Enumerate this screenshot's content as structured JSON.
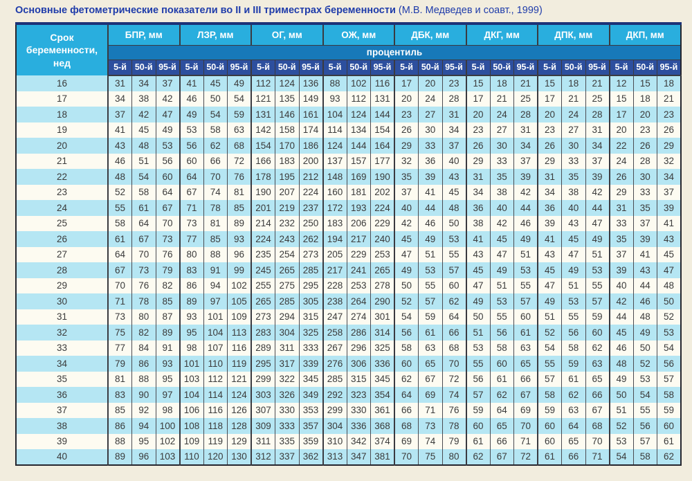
{
  "title": {
    "main": "Основные фетометрические показатели во II и III триместрах беременности",
    "source": "(М.В. Медведев и соавт., 1999)"
  },
  "colors": {
    "page_bg": "#f2edde",
    "title_blue": "#1f3caa",
    "header_cyan": "#29aede",
    "band_blue": "#1779b9",
    "pct_navy": "#2d4f9e",
    "stripe_cyan": "#b5e6f3",
    "stripe_white": "#fdfbf1"
  },
  "table": {
    "corner_header": "Срок беременности, нед",
    "groups": [
      "БПР, мм",
      "ЛЗР, мм",
      "ОГ, мм",
      "ОЖ, мм",
      "ДБК, мм",
      "ДКГ, мм",
      "ДПК, мм",
      "ДКП, мм"
    ],
    "percentile_label": "процентиль",
    "percentiles": [
      "5-й",
      "50-й",
      "95-й"
    ],
    "rows": [
      {
        "week": 16,
        "values": [
          31,
          34,
          37,
          41,
          45,
          49,
          112,
          124,
          136,
          88,
          102,
          116,
          17,
          20,
          23,
          15,
          18,
          21,
          15,
          18,
          21,
          12,
          15,
          18
        ]
      },
      {
        "week": 17,
        "values": [
          34,
          38,
          42,
          46,
          50,
          54,
          121,
          135,
          149,
          93,
          112,
          131,
          20,
          24,
          28,
          17,
          21,
          25,
          17,
          21,
          25,
          15,
          18,
          21
        ]
      },
      {
        "week": 18,
        "values": [
          37,
          42,
          47,
          49,
          54,
          59,
          131,
          146,
          161,
          104,
          124,
          144,
          23,
          27,
          31,
          20,
          24,
          28,
          20,
          24,
          28,
          17,
          20,
          23
        ]
      },
      {
        "week": 19,
        "values": [
          41,
          45,
          49,
          53,
          58,
          63,
          142,
          158,
          174,
          114,
          134,
          154,
          26,
          30,
          34,
          23,
          27,
          31,
          23,
          27,
          31,
          20,
          23,
          26
        ]
      },
      {
        "week": 20,
        "values": [
          43,
          48,
          53,
          56,
          62,
          68,
          154,
          170,
          186,
          124,
          144,
          164,
          29,
          33,
          37,
          26,
          30,
          34,
          26,
          30,
          34,
          22,
          26,
          29
        ]
      },
      {
        "week": 21,
        "values": [
          46,
          51,
          56,
          60,
          66,
          72,
          166,
          183,
          200,
          137,
          157,
          177,
          32,
          36,
          40,
          29,
          33,
          37,
          29,
          33,
          37,
          24,
          28,
          32
        ]
      },
      {
        "week": 22,
        "values": [
          48,
          54,
          60,
          64,
          70,
          76,
          178,
          195,
          212,
          148,
          169,
          190,
          35,
          39,
          43,
          31,
          35,
          39,
          31,
          35,
          39,
          26,
          30,
          34
        ]
      },
      {
        "week": 23,
        "values": [
          52,
          58,
          64,
          67,
          74,
          81,
          190,
          207,
          224,
          160,
          181,
          202,
          37,
          41,
          45,
          34,
          38,
          42,
          34,
          38,
          42,
          29,
          33,
          37
        ]
      },
      {
        "week": 24,
        "values": [
          55,
          61,
          67,
          71,
          78,
          85,
          201,
          219,
          237,
          172,
          193,
          224,
          40,
          44,
          48,
          36,
          40,
          44,
          36,
          40,
          44,
          31,
          35,
          39
        ]
      },
      {
        "week": 25,
        "values": [
          58,
          64,
          70,
          73,
          81,
          89,
          214,
          232,
          250,
          183,
          206,
          229,
          42,
          46,
          50,
          38,
          42,
          46,
          39,
          43,
          47,
          33,
          37,
          41
        ]
      },
      {
        "week": 26,
        "values": [
          61,
          67,
          73,
          77,
          85,
          93,
          224,
          243,
          262,
          194,
          217,
          240,
          45,
          49,
          53,
          41,
          45,
          49,
          41,
          45,
          49,
          35,
          39,
          43
        ]
      },
      {
        "week": 27,
        "values": [
          64,
          70,
          76,
          80,
          88,
          96,
          235,
          254,
          273,
          205,
          229,
          253,
          47,
          51,
          55,
          43,
          47,
          51,
          43,
          47,
          51,
          37,
          41,
          45
        ]
      },
      {
        "week": 28,
        "values": [
          67,
          73,
          79,
          83,
          91,
          99,
          245,
          265,
          285,
          217,
          241,
          265,
          49,
          53,
          57,
          45,
          49,
          53,
          45,
          49,
          53,
          39,
          43,
          47
        ]
      },
      {
        "week": 29,
        "values": [
          70,
          76,
          82,
          86,
          94,
          102,
          255,
          275,
          295,
          228,
          253,
          278,
          50,
          55,
          60,
          47,
          51,
          55,
          47,
          51,
          55,
          40,
          44,
          48
        ]
      },
      {
        "week": 30,
        "values": [
          71,
          78,
          85,
          89,
          97,
          105,
          265,
          285,
          305,
          238,
          264,
          290,
          52,
          57,
          62,
          49,
          53,
          57,
          49,
          53,
          57,
          42,
          46,
          50
        ]
      },
      {
        "week": 31,
        "values": [
          73,
          80,
          87,
          93,
          101,
          109,
          273,
          294,
          315,
          247,
          274,
          301,
          54,
          59,
          64,
          50,
          55,
          60,
          51,
          55,
          59,
          44,
          48,
          52
        ]
      },
      {
        "week": 32,
        "values": [
          75,
          82,
          89,
          95,
          104,
          113,
          283,
          304,
          325,
          258,
          286,
          314,
          56,
          61,
          66,
          51,
          56,
          61,
          52,
          56,
          60,
          45,
          49,
          53
        ]
      },
      {
        "week": 33,
        "values": [
          77,
          84,
          91,
          98,
          107,
          116,
          289,
          311,
          333,
          267,
          296,
          325,
          58,
          63,
          68,
          53,
          58,
          63,
          54,
          58,
          62,
          46,
          50,
          54
        ]
      },
      {
        "week": 34,
        "values": [
          79,
          86,
          93,
          101,
          110,
          119,
          295,
          317,
          339,
          276,
          306,
          336,
          60,
          65,
          70,
          55,
          60,
          65,
          55,
          59,
          63,
          48,
          52,
          56
        ]
      },
      {
        "week": 35,
        "values": [
          81,
          88,
          95,
          103,
          112,
          121,
          299,
          322,
          345,
          285,
          315,
          345,
          62,
          67,
          72,
          56,
          61,
          66,
          57,
          61,
          65,
          49,
          53,
          57
        ]
      },
      {
        "week": 36,
        "values": [
          83,
          90,
          97,
          104,
          114,
          124,
          303,
          326,
          349,
          292,
          323,
          354,
          64,
          69,
          74,
          57,
          62,
          67,
          58,
          62,
          66,
          50,
          54,
          58
        ]
      },
      {
        "week": 37,
        "values": [
          85,
          92,
          98,
          106,
          116,
          126,
          307,
          330,
          353,
          299,
          330,
          361,
          66,
          71,
          76,
          59,
          64,
          69,
          59,
          63,
          67,
          51,
          55,
          59
        ]
      },
      {
        "week": 38,
        "values": [
          86,
          94,
          100,
          108,
          118,
          128,
          309,
          333,
          357,
          304,
          336,
          368,
          68,
          73,
          78,
          60,
          65,
          70,
          60,
          64,
          68,
          52,
          56,
          60
        ]
      },
      {
        "week": 39,
        "values": [
          88,
          95,
          102,
          109,
          119,
          129,
          311,
          335,
          359,
          310,
          342,
          374,
          69,
          74,
          79,
          61,
          66,
          71,
          60,
          65,
          70,
          53,
          57,
          61
        ]
      },
      {
        "week": 40,
        "values": [
          89,
          96,
          103,
          110,
          120,
          130,
          312,
          337,
          362,
          313,
          347,
          381,
          70,
          75,
          80,
          62,
          67,
          72,
          61,
          66,
          71,
          54,
          58,
          62
        ]
      }
    ]
  }
}
